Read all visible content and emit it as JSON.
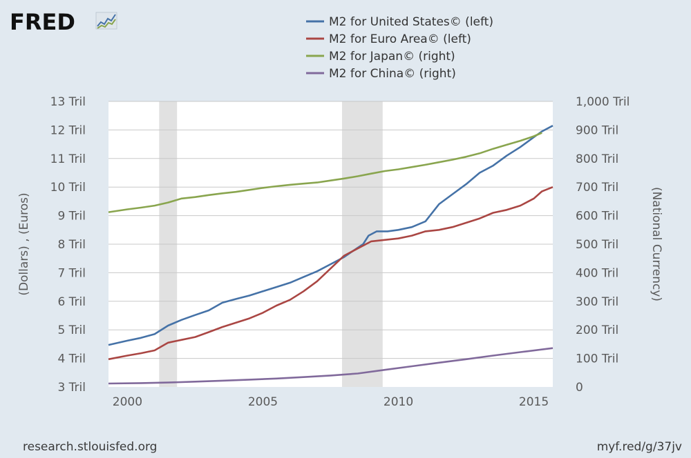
{
  "logo": {
    "text": "FRED"
  },
  "footer": {
    "source_url": "research.stlouisfed.org",
    "short_url": "myf.red/g/37jv"
  },
  "chart_data": {
    "type": "line",
    "legend_position": "top-center",
    "grid": true,
    "x": {
      "ticks": [
        2000,
        2005,
        2010,
        2015
      ],
      "range": [
        1999.3,
        2015.7
      ]
    },
    "y_left": {
      "label": "(Dollars) , (Euros)",
      "range": [
        3,
        13
      ],
      "ticks": [
        3,
        4,
        5,
        6,
        7,
        8,
        9,
        10,
        11,
        12,
        13
      ],
      "tick_labels": [
        "3 Tril",
        "4 Tril",
        "5 Tril",
        "6 Tril",
        "7 Tril",
        "8 Tril",
        "9 Tril",
        "10 Tril",
        "11 Tril",
        "12 Tril",
        "13 Tril"
      ]
    },
    "y_right": {
      "label": "(National Currency)",
      "range": [
        0,
        1000
      ],
      "ticks": [
        0,
        100,
        200,
        300,
        400,
        500,
        600,
        700,
        800,
        900,
        1000
      ],
      "tick_labels": [
        "0",
        "100 Tril",
        "200 Tril",
        "300 Tril",
        "400 Tril",
        "500 Tril",
        "600 Tril",
        "700 Tril",
        "800 Tril",
        "900 Tril",
        "1,000 Tril"
      ]
    },
    "recessions": [
      [
        2001.17,
        2001.83
      ],
      [
        2007.92,
        2009.42
      ]
    ],
    "series": [
      {
        "name": "M2 for United States© (left)",
        "axis": "left",
        "color": "#4572a7",
        "points": [
          [
            1999.3,
            4.47
          ],
          [
            2000.0,
            4.62
          ],
          [
            2000.5,
            4.72
          ],
          [
            2001.0,
            4.85
          ],
          [
            2001.5,
            5.15
          ],
          [
            2002.0,
            5.35
          ],
          [
            2002.5,
            5.52
          ],
          [
            2003.0,
            5.68
          ],
          [
            2003.5,
            5.95
          ],
          [
            2004.0,
            6.08
          ],
          [
            2004.5,
            6.2
          ],
          [
            2005.0,
            6.35
          ],
          [
            2005.5,
            6.5
          ],
          [
            2006.0,
            6.65
          ],
          [
            2006.5,
            6.85
          ],
          [
            2007.0,
            7.05
          ],
          [
            2007.5,
            7.3
          ],
          [
            2008.0,
            7.55
          ],
          [
            2008.3,
            7.75
          ],
          [
            2008.7,
            8.0
          ],
          [
            2008.9,
            8.3
          ],
          [
            2009.2,
            8.45
          ],
          [
            2009.6,
            8.45
          ],
          [
            2010.0,
            8.5
          ],
          [
            2010.5,
            8.6
          ],
          [
            2011.0,
            8.8
          ],
          [
            2011.5,
            9.4
          ],
          [
            2012.0,
            9.75
          ],
          [
            2012.5,
            10.1
          ],
          [
            2013.0,
            10.5
          ],
          [
            2013.5,
            10.75
          ],
          [
            2014.0,
            11.1
          ],
          [
            2014.5,
            11.4
          ],
          [
            2015.0,
            11.75
          ],
          [
            2015.3,
            11.95
          ],
          [
            2015.7,
            12.15
          ]
        ]
      },
      {
        "name": "M2 for Euro Area© (left)",
        "axis": "left",
        "color": "#aa4643",
        "points": [
          [
            1999.3,
            3.97
          ],
          [
            2000.0,
            4.1
          ],
          [
            2000.5,
            4.18
          ],
          [
            2001.0,
            4.28
          ],
          [
            2001.5,
            4.55
          ],
          [
            2002.0,
            4.65
          ],
          [
            2002.5,
            4.75
          ],
          [
            2003.0,
            4.92
          ],
          [
            2003.5,
            5.1
          ],
          [
            2004.0,
            5.25
          ],
          [
            2004.5,
            5.4
          ],
          [
            2005.0,
            5.6
          ],
          [
            2005.5,
            5.85
          ],
          [
            2006.0,
            6.05
          ],
          [
            2006.5,
            6.35
          ],
          [
            2007.0,
            6.7
          ],
          [
            2007.5,
            7.15
          ],
          [
            2008.0,
            7.6
          ],
          [
            2008.5,
            7.85
          ],
          [
            2009.0,
            8.1
          ],
          [
            2009.5,
            8.15
          ],
          [
            2010.0,
            8.2
          ],
          [
            2010.5,
            8.3
          ],
          [
            2011.0,
            8.45
          ],
          [
            2011.5,
            8.5
          ],
          [
            2012.0,
            8.6
          ],
          [
            2012.5,
            8.75
          ],
          [
            2013.0,
            8.9
          ],
          [
            2013.5,
            9.1
          ],
          [
            2014.0,
            9.2
          ],
          [
            2014.5,
            9.35
          ],
          [
            2015.0,
            9.6
          ],
          [
            2015.3,
            9.85
          ],
          [
            2015.7,
            10.0
          ]
        ]
      },
      {
        "name": "M2 for Japan© (right)",
        "axis": "right",
        "color": "#89a54e",
        "points": [
          [
            1999.3,
            612
          ],
          [
            2000.0,
            622
          ],
          [
            2000.5,
            628
          ],
          [
            2001.0,
            635
          ],
          [
            2001.5,
            646
          ],
          [
            2002.0,
            660
          ],
          [
            2002.5,
            665
          ],
          [
            2003.0,
            672
          ],
          [
            2003.5,
            678
          ],
          [
            2004.0,
            683
          ],
          [
            2004.5,
            690
          ],
          [
            2005.0,
            697
          ],
          [
            2005.5,
            703
          ],
          [
            2006.0,
            708
          ],
          [
            2006.5,
            712
          ],
          [
            2007.0,
            716
          ],
          [
            2007.5,
            723
          ],
          [
            2008.0,
            730
          ],
          [
            2008.5,
            738
          ],
          [
            2009.0,
            747
          ],
          [
            2009.5,
            756
          ],
          [
            2010.0,
            762
          ],
          [
            2010.5,
            770
          ],
          [
            2011.0,
            778
          ],
          [
            2011.5,
            787
          ],
          [
            2012.0,
            796
          ],
          [
            2012.5,
            806
          ],
          [
            2013.0,
            818
          ],
          [
            2013.5,
            834
          ],
          [
            2014.0,
            848
          ],
          [
            2014.5,
            862
          ],
          [
            2015.0,
            878
          ],
          [
            2015.3,
            890
          ]
        ]
      },
      {
        "name": "M2 for China© (right)",
        "axis": "right",
        "color": "#80699b",
        "points": [
          [
            1999.3,
            12
          ],
          [
            2000.5,
            13.5
          ],
          [
            2001.5,
            15.5
          ],
          [
            2002.5,
            18.5
          ],
          [
            2003.5,
            22
          ],
          [
            2004.5,
            25.5
          ],
          [
            2005.5,
            29.5
          ],
          [
            2006.5,
            34.5
          ],
          [
            2007.5,
            40
          ],
          [
            2008.5,
            47
          ],
          [
            2009.5,
            60
          ],
          [
            2010.5,
            72.5
          ],
          [
            2011.5,
            85
          ],
          [
            2012.5,
            97
          ],
          [
            2013.5,
            110
          ],
          [
            2014.5,
            122
          ],
          [
            2015.7,
            136
          ]
        ]
      }
    ]
  }
}
